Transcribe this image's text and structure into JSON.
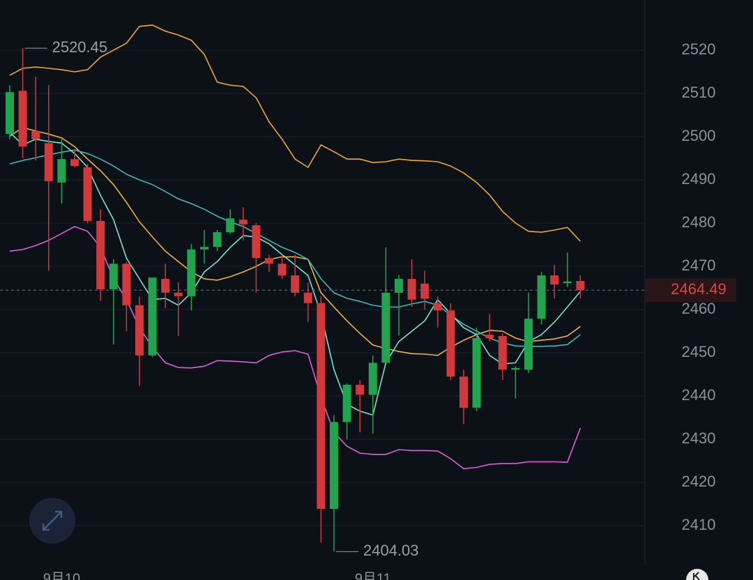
{
  "chart_data": {
    "type": "candlestick",
    "categories": [
      null,
      null,
      null,
      null,
      "9月10",
      null,
      null,
      null,
      null,
      null,
      null,
      null,
      null,
      null,
      null,
      null,
      null,
      null,
      null,
      null,
      null,
      null,
      null,
      null,
      null,
      null,
      null,
      null,
      "9月11",
      null,
      null,
      null,
      null,
      null,
      null,
      null,
      null,
      null,
      null,
      null,
      null,
      null,
      null,
      null,
      null
    ],
    "open": [
      2500.6,
      2510.6,
      2501.3,
      2498.5,
      2489.4,
      2494.8,
      2492.9,
      2480.5,
      2464.7,
      2470.6,
      2461.0,
      2449.4,
      2467.1,
      2463.9,
      2463.1,
      2473.9,
      2474.5,
      2477.9,
      2480.8,
      2479.5,
      2471.9,
      2470.6,
      2467.9,
      2463.9,
      2461.5,
      2413.9,
      2434.0,
      2442.6,
      2440.3,
      2447.7,
      2463.9,
      2467.1,
      2466.0,
      2461.5,
      2459.8,
      2444.5,
      2437.3,
      2454.2,
      2453.9,
      2446.1,
      2446.1,
      2457.9,
      2467.9,
      2466.1,
      2466.6
    ],
    "high": [
      2511.9,
      2520.45,
      2513.9,
      2511.9,
      2499.4,
      2496.9,
      2493.7,
      2483.2,
      2471.6,
      2471.0,
      2463.0,
      2467.4,
      2470.6,
      2466.3,
      2475.2,
      2478.4,
      2478.4,
      2483.2,
      2483.7,
      2480.0,
      2472.7,
      2472.7,
      2472.7,
      2466.3,
      2463.1,
      2435.6,
      2442.9,
      2443.7,
      2449.4,
      2474.4,
      2468.0,
      2471.6,
      2469.0,
      2463.0,
      2461.5,
      2446.1,
      2455.8,
      2459.0,
      2454.5,
      2446.9,
      2463.9,
      2468.7,
      2470.3,
      2473.2,
      2467.9
    ],
    "low": [
      2499.4,
      2495.0,
      2494.5,
      2469.0,
      2484.5,
      2492.9,
      2480.0,
      2462.0,
      2451.9,
      2455.0,
      2442.3,
      2449.0,
      2460.3,
      2453.9,
      2459.8,
      2470.6,
      2473.5,
      2477.6,
      2476.0,
      2463.9,
      2468.7,
      2467.1,
      2463.1,
      2457.1,
      2406.1,
      2404.03,
      2430.0,
      2431.6,
      2431.3,
      2447.7,
      2454.0,
      2460.6,
      2460.0,
      2455.8,
      2443.7,
      2433.5,
      2436.5,
      2452.6,
      2443.7,
      2439.4,
      2445.3,
      2456.6,
      2462.6,
      2465.2,
      2462.6
    ],
    "close": [
      2510.3,
      2497.7,
      2499.4,
      2489.7,
      2494.8,
      2493.2,
      2480.5,
      2464.7,
      2470.6,
      2461.0,
      2449.4,
      2467.4,
      2463.9,
      2463.1,
      2473.9,
      2474.5,
      2477.9,
      2481.1,
      2479.7,
      2471.9,
      2470.6,
      2467.9,
      2463.9,
      2461.5,
      2413.9,
      2434.0,
      2442.6,
      2440.3,
      2447.7,
      2463.9,
      2467.1,
      2462.3,
      2462.5,
      2459.8,
      2444.5,
      2437.3,
      2453.4,
      2453.4,
      2446.1,
      2446.5,
      2457.9,
      2467.9,
      2465.8,
      2466.5,
      2464.49
    ],
    "up_color": "#22a34f",
    "down_color": "#d1393b",
    "lines": [
      {
        "color": "#f2a634",
        "values": [
          2514.2,
          2515.8,
          2516.1,
          2515.8,
          2515.5,
          2515.0,
          2515.5,
          2518.4,
          2520.0,
          2521.6,
          2525.5,
          2525.8,
          2524.4,
          2523.5,
          2522.3,
          2519.0,
          2512.6,
          2511.9,
          2511.6,
          2509.0,
          2503.4,
          2499.4,
          2494.8,
          2492.9,
          2498.1,
          2496.5,
          2494.8,
          2494.8,
          2494.0,
          2494.2,
          2494.8,
          2494.5,
          2494.4,
          2494.2,
          2493.2,
          2491.6,
          2489.4,
          2486.5,
          2482.7,
          2480.0,
          2478.1,
          2477.9,
          2478.4,
          2479.0,
          2475.8
        ]
      },
      {
        "color": "#e05fd6",
        "values": [
          2473.5,
          2473.9,
          2474.8,
          2476.0,
          2477.6,
          2479.2,
          2478.1,
          2474.4,
          2467.1,
          2462.3,
          2455.8,
          2451.3,
          2447.7,
          2446.6,
          2446.5,
          2446.9,
          2448.2,
          2448.1,
          2447.9,
          2447.7,
          2449.4,
          2450.2,
          2450.5,
          2449.7,
          2439.7,
          2431.6,
          2428.4,
          2426.8,
          2426.5,
          2426.5,
          2427.6,
          2427.4,
          2427.4,
          2427.3,
          2425.5,
          2423.2,
          2423.5,
          2424.2,
          2424.4,
          2424.4,
          2424.8,
          2424.8,
          2424.8,
          2424.7,
          2432.6
        ]
      },
      {
        "color": "#f0b23a",
        "values": [
          2500.1,
          2502.1,
          2501.3,
          2500.6,
          2499.7,
          2497.7,
          2494.8,
          2492.1,
          2488.9,
          2484.8,
          2480.3,
          2476.8,
          2473.5,
          2471.1,
          2468.7,
          2467.1,
          2466.8,
          2467.6,
          2468.7,
          2470.0,
          2471.6,
          2472.2,
          2472.2,
          2471.6,
          2463.9,
          2460.6,
          2457.4,
          2454.5,
          2451.8,
          2451.0,
          2450.3,
          2449.8,
          2449.7,
          2449.4,
          2451.3,
          2452.9,
          2454.2,
          2455.2,
          2455.0,
          2453.4,
          2452.6,
          2452.9,
          2453.2,
          2453.9,
          2456.1
        ]
      },
      {
        "color": "#3fb8b8",
        "values": [
          2493.7,
          2494.5,
          2495.1,
          2495.8,
          2496.4,
          2496.9,
          2496.1,
          2494.8,
          2493.2,
          2491.3,
          2490.0,
          2488.9,
          2487.3,
          2485.6,
          2484.5,
          2483.2,
          2481.6,
          2480.3,
          2479.2,
          2477.6,
          2476.0,
          2474.4,
          2473.2,
          2471.6,
          2467.1,
          2463.9,
          2462.6,
          2461.9,
          2461.0,
          2460.6,
          2460.6,
          2461.3,
          2461.9,
          2461.0,
          2458.7,
          2456.6,
          2455.0,
          2453.4,
          2452.3,
          2451.6,
          2451.5,
          2451.5,
          2451.6,
          2451.9,
          2454.2
        ]
      },
      {
        "color": "#79e3d2",
        "values": [
          2501.0,
          2498.1,
          2499.4,
          2498.9,
          2498.5,
          2496.1,
          2492.9,
          2486.4,
          2480.8,
          2471.9,
          2467.1,
          2462.3,
          2462.6,
          2461.0,
          2463.9,
          2468.7,
          2471.1,
          2474.4,
          2477.1,
          2476.8,
          2475.2,
          2472.7,
          2470.3,
          2467.9,
          2459.0,
          2446.1,
          2438.1,
          2436.5,
          2435.6,
          2447.7,
          2452.6,
          2455.0,
          2457.4,
          2462.3,
          2459.0,
          2455.8,
          2454.2,
          2449.4,
          2447.4,
          2447.7,
          2452.6,
          2454.2,
          2457.1,
          2460.6,
          2464.2
        ]
      }
    ],
    "ylim": [
      2401,
      2531.6
    ],
    "yticks": [
      2410,
      2420,
      2430,
      2440,
      2450,
      2460,
      2470,
      2480,
      2490,
      2500,
      2510,
      2520
    ],
    "grid": true
  }
}
